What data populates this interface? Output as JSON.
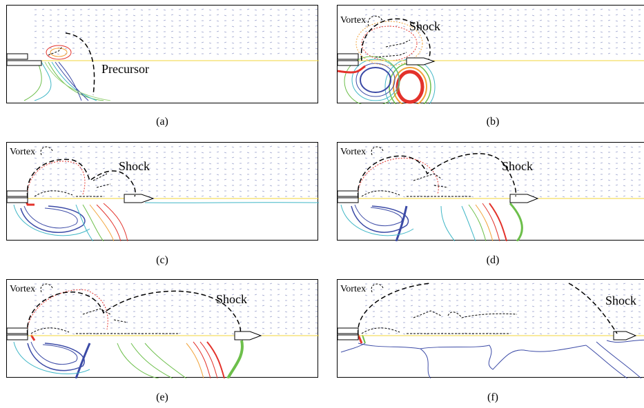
{
  "figure": {
    "panels": [
      {
        "caption": "(a)",
        "labels": [
          "Precursor"
        ]
      },
      {
        "caption": "(b)",
        "labels": [
          "Vortex",
          "Shock"
        ]
      },
      {
        "caption": "(c)",
        "labels": [
          "Vortex",
          "Shock"
        ]
      },
      {
        "caption": "(d)",
        "labels": [
          "Vortex",
          "Shock"
        ]
      },
      {
        "caption": "(e)",
        "labels": [
          "Vortex",
          "Shock"
        ]
      },
      {
        "caption": "(f)",
        "labels": [
          "Vortex",
          "Shock"
        ]
      }
    ]
  },
  "colors": {
    "vectors": "#4a56a8",
    "hot": "#e3322b",
    "warm": "#f2a33a",
    "mid": "#6dbf4b",
    "cool": "#3fb6c6",
    "cold": "#3b4aa6",
    "axis": "#f2d43a",
    "front": "#000000"
  }
}
